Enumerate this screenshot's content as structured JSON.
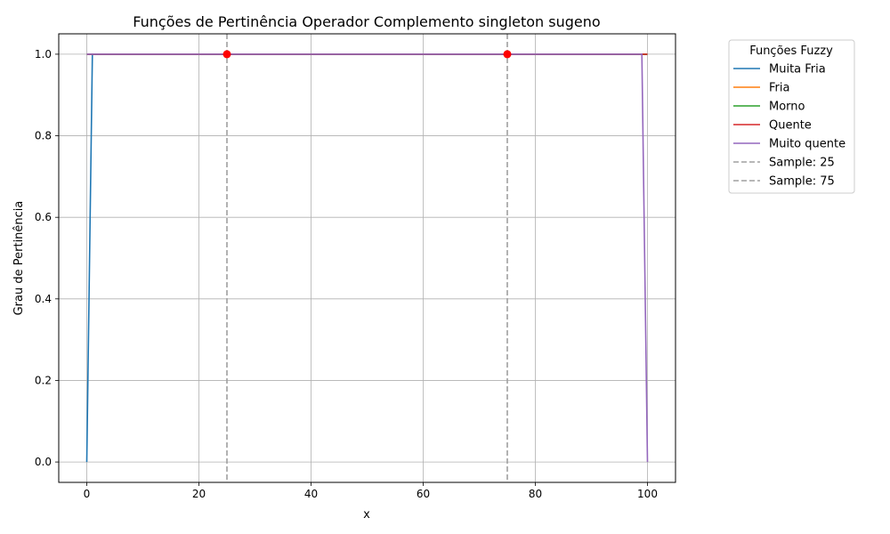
{
  "chart_data": {
    "type": "line",
    "title": "Funções de Pertinência Operador Complemento singleton sugeno",
    "xlabel": "x",
    "ylabel": "Grau de Pertinência",
    "xlim": [
      -5,
      105
    ],
    "ylim": [
      -0.05,
      1.05
    ],
    "xticks": [
      0,
      20,
      40,
      60,
      80,
      100
    ],
    "xtick_labels": [
      "0",
      "20",
      "40",
      "60",
      "80",
      "100"
    ],
    "yticks": [
      0.0,
      0.2,
      0.4,
      0.6,
      0.8,
      1.0
    ],
    "ytick_labels": [
      "0.0",
      "0.2",
      "0.4",
      "0.6",
      "0.8",
      "1.0"
    ],
    "grid": true,
    "legend": {
      "title": "Funções Fuzzy",
      "placement": "outside-right-top"
    },
    "series": [
      {
        "name": "Muita Fria",
        "color": "#1f77b4",
        "style": "solid",
        "x": [
          0,
          1,
          100
        ],
        "y": [
          0.0,
          1.0,
          1.0
        ]
      },
      {
        "name": "Fria",
        "color": "#ff7f0e",
        "style": "solid",
        "x": [
          0,
          100
        ],
        "y": [
          1.0,
          1.0
        ]
      },
      {
        "name": "Morno",
        "color": "#2ca02c",
        "style": "solid",
        "x": [
          0,
          100
        ],
        "y": [
          1.0,
          1.0
        ]
      },
      {
        "name": "Quente",
        "color": "#d62728",
        "style": "solid",
        "x": [
          0,
          100
        ],
        "y": [
          1.0,
          1.0
        ]
      },
      {
        "name": "Muito quente",
        "color": "#9467bd",
        "style": "solid",
        "x": [
          0,
          99,
          100
        ],
        "y": [
          1.0,
          1.0,
          0.0
        ]
      }
    ],
    "vlines": [
      {
        "name": "Sample: 25",
        "x": 25,
        "color": "#a0a0a0",
        "style": "dashed"
      },
      {
        "name": "Sample: 75",
        "x": 75,
        "color": "#a0a0a0",
        "style": "dashed"
      }
    ],
    "points": [
      {
        "x": 25,
        "y": 1.0,
        "color": "#ff0000"
      },
      {
        "x": 75,
        "y": 1.0,
        "color": "#ff0000"
      }
    ]
  }
}
